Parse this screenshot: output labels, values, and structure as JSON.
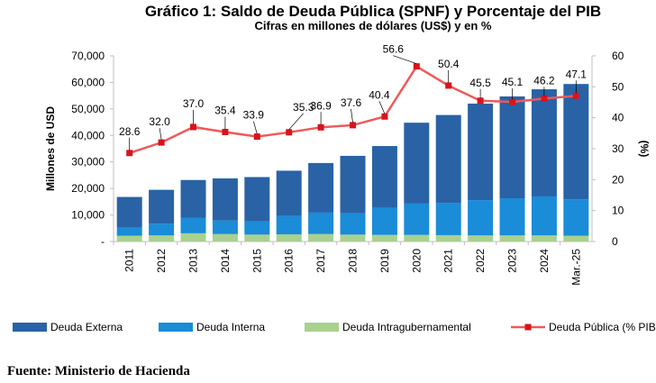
{
  "chart_data": {
    "type": "bar",
    "title": "Gráfico 1: Saldo de Deuda Pública (SPNF) y Porcentaje del PIB",
    "subtitle": "Cifras en millones de dólares (US$) y en %",
    "ylabel": "Millones de USD",
    "y2label": "(%)",
    "ylim": [
      0,
      70000
    ],
    "y2lim": [
      0,
      60
    ],
    "y_ticks": [
      "-",
      "10,000",
      "20,000",
      "30,000",
      "40,000",
      "50,000",
      "60,000",
      "70,000"
    ],
    "y2_ticks": [
      "0",
      "10",
      "20",
      "30",
      "40",
      "50",
      "60"
    ],
    "categories": [
      "2011",
      "2012",
      "2013",
      "2014",
      "2015",
      "2016",
      "2017",
      "2018",
      "2019",
      "2020",
      "2021",
      "2022",
      "2023",
      "2024",
      "Mar.-25"
    ],
    "series": [
      {
        "name": "Deuda Intragubernamental",
        "color": "#a9d18e",
        "values": [
          2200,
          2300,
          3100,
          2800,
          2600,
          2700,
          2800,
          2600,
          2500,
          2500,
          2400,
          2300,
          2300,
          2300,
          2200
        ]
      },
      {
        "name": "Deuda Interna",
        "color": "#1a8cd8",
        "values": [
          3000,
          4400,
          5900,
          5100,
          5000,
          6900,
          8100,
          8000,
          10200,
          11800,
          12100,
          13300,
          14000,
          14700,
          13700
        ]
      },
      {
        "name": "Deuda Externa",
        "color": "#2a62a6",
        "values": [
          11600,
          12800,
          14200,
          15900,
          16700,
          17100,
          18700,
          21700,
          23300,
          30500,
          33200,
          36400,
          38400,
          40400,
          43500
        ]
      }
    ],
    "line": {
      "name": "Deuda Pública (% PIB)",
      "color": "#ee5a5a",
      "marker_color": "#d9141b",
      "values": [
        28.6,
        32.0,
        37.0,
        35.4,
        33.9,
        35.3,
        36.9,
        37.6,
        40.4,
        56.6,
        50.4,
        45.5,
        45.1,
        46.2,
        47.1
      ],
      "labels": [
        "28.6",
        "32.0",
        "37.0",
        "35.4",
        "33.9",
        "35.3",
        "36.9",
        "37.6",
        "40.4",
        "56.6",
        "50.4",
        "45.5",
        "45.1",
        "46.2",
        "47.1"
      ]
    },
    "legend": [
      "Deuda Externa",
      "Deuda Interna",
      "Deuda Intragubernamental",
      "Deuda Pública (% PIB)"
    ],
    "legend_position": "bottom"
  },
  "source": "Fuente: Ministerio de Hacienda"
}
